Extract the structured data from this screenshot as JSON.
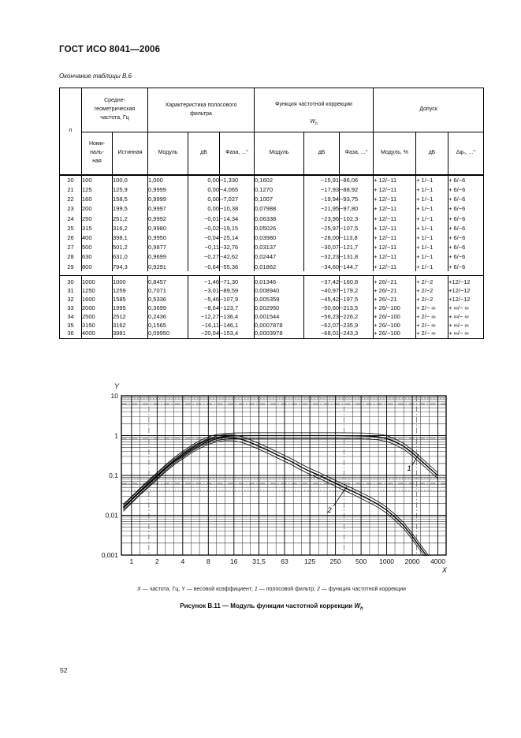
{
  "page": {
    "header_title": "ГОСТ ИСО 8041—2006",
    "continuation_label": "Окончание таблицы В.6",
    "page_number": "52"
  },
  "table": {
    "group_headers": {
      "n": "n",
      "freq": "Средне-\nгеометрическая\nчастота, Гц",
      "filter": "Характеристика полосового\nфильтра",
      "weighting_prefix": "Функция частотной коррекции",
      "weighting_symbol": "W",
      "weighting_sub": "h",
      "tolerance": "Допуск"
    },
    "sub_headers": [
      "Номи-\nналь-\nная",
      "Истинная",
      "Модуль",
      "дБ",
      "Фаза, ...°",
      "Модуль",
      "дБ",
      "Фаза, ...°",
      "Модуль, %",
      "дБ",
      "Δφ₀, ...°"
    ],
    "rows_group1": [
      [
        "20",
        "100",
        "100,0",
        "1,000",
        "0,00",
        "−1,330",
        "0,1602",
        "−15,91",
        "−86,06",
        "+ 12/−11",
        "+ 1/−1",
        "+ 6/−6"
      ],
      [
        "21",
        "125",
        "125,9",
        "0,9999",
        "0,00",
        "−4,065",
        "0,1270",
        "−17,93",
        "−88,92",
        "+ 12/−11",
        "+ 1/−1",
        "+ 6/−6"
      ],
      [
        "22",
        "160",
        "158,5",
        "0,9999",
        "0,00",
        "−7,027",
        "0,1007",
        "−19,94",
        "−93,75",
        "+ 12/−11",
        "+ 1/−1",
        "+ 6/−6"
      ],
      [
        "23",
        "200",
        "199,5",
        "0,9997",
        "0,00",
        "−10,38",
        "0,07988",
        "−21,95",
        "−97,80",
        "+ 12/−11",
        "+ 1/−1",
        "+ 6/−6"
      ],
      [
        "24",
        "250",
        "251,2",
        "0,9992",
        "−0,01",
        "−14,34",
        "0,06338",
        "−23,96",
        "−102,3",
        "+ 12/−11",
        "+ 1/−1",
        "+ 6/−6"
      ],
      [
        "25",
        "315",
        "316,2",
        "0,9980",
        "−0,02",
        "−19,15",
        "0,05026",
        "−25,97",
        "−107,5",
        "+ 12/−11",
        "+ 1/−1",
        "+ 6/−6"
      ],
      [
        "26",
        "400",
        "398,1",
        "0,9950",
        "−0,04",
        "−25,14",
        "0,03980",
        "−28,00",
        "−113,8",
        "+ 12/−11",
        "+ 1/−1",
        "+ 6/−6"
      ],
      [
        "27",
        "500",
        "501,2",
        "0,9877",
        "−0,11",
        "−32,76",
        "0,03137",
        "−30,07",
        "−121,7",
        "+ 12/−11",
        "+ 1/−1",
        "+ 6/−6"
      ],
      [
        "28",
        "630",
        "631,0",
        "0,9699",
        "−0,27",
        "−42,62",
        "0,02447",
        "−32,23",
        "−131,8",
        "+ 12/−11",
        "+ 1/−1",
        "+ 6/−6"
      ],
      [
        "29",
        "800",
        "794,3",
        "0,9291",
        "−0,64",
        "−55,36",
        "0,01862",
        "−34,60",
        "−144,7",
        "+ 12/−11",
        "+ 1/−1",
        "+ 6/−6"
      ]
    ],
    "rows_group2": [
      [
        "30",
        "1000",
        "1000",
        "0,8457",
        "−1,46",
        "−71,30",
        "0,01346",
        "−37,42",
        "−160,8",
        "+ 26/−21",
        "+ 2/−2",
        "+12/−12"
      ],
      [
        "31",
        "1250",
        "1259",
        "0,7071",
        "−3,01",
        "−89,59",
        "0,008940",
        "−40,97",
        "−179,2",
        "+ 26/−21",
        "+ 2/−2",
        "+12/−12"
      ],
      [
        "32",
        "1600",
        "1585",
        "0,5336",
        "−5,46",
        "−107,9",
        "0,005359",
        "−45,42",
        "−197,5",
        "+ 26/−21",
        "+ 2/−2",
        "+12/−12"
      ],
      [
        "33",
        "2000",
        "1995",
        "0,3699",
        "−8,64",
        "−123,7",
        "0,002950",
        "−50,60",
        "−213,5",
        "+ 26/−100",
        "+ 2/− ∞",
        "+ ∞/− ∞"
      ],
      [
        "34",
        "2500",
        "2512",
        "0,2436",
        "−12,27",
        "−136,4",
        "0,001544",
        "−56,23",
        "−226,2",
        "+ 26/−100",
        "+ 2/− ∞",
        "+ ∞/− ∞"
      ],
      [
        "35",
        "3150",
        "3162",
        "0,1565",
        "−16,11",
        "−146,1",
        "0,0007878",
        "−62,07",
        "−235,9",
        "+ 26/−100",
        "+ 2/− ∞",
        "+ ∞/− ∞"
      ],
      [
        "36",
        "4000",
        "3981",
        "0,09950",
        "−20,04",
        "−153,4",
        "0,0003978",
        "−68,01",
        "−243,3",
        "+ 26/−100",
        "+ 2/− ∞",
        "+ ∞/− ∞"
      ]
    ]
  },
  "chart_data": {
    "type": "line",
    "xlabel": "X",
    "ylabel": "Y",
    "x_axis_meaning": "частота, Гц",
    "y_axis_meaning": "весовой коэффициент",
    "x_scale": "log",
    "y_scale": "log",
    "xlim": [
      0.76,
      5000
    ],
    "ylim": [
      0.001,
      10
    ],
    "grid": "on",
    "x_tick_values": [
      1,
      2,
      4,
      8,
      16,
      31.5,
      63,
      125,
      250,
      500,
      1000,
      2000,
      4000
    ],
    "x_tick_labels": [
      "1",
      "2",
      "4",
      "8",
      "16",
      "31,5",
      "63",
      "125",
      "250",
      "500",
      "1000",
      "2000",
      "4000"
    ],
    "y_tick_values": [
      10,
      1,
      0.1,
      0.01,
      0.001
    ],
    "y_tick_labels": [
      "10",
      "1",
      "0,1",
      "0,01",
      "0,001"
    ],
    "x_minor": [
      1.25,
      2.5,
      3.15,
      5,
      6.3,
      10,
      12.5,
      20,
      25,
      40,
      50,
      80,
      100,
      160,
      200,
      400,
      630,
      800,
      1250,
      1600,
      2500,
      3150
    ],
    "dashdot_x": [
      1.6,
      315,
      2240
    ],
    "dashdot_y": [
      6.3,
      0.85,
      0.063
    ],
    "dotted_y": [
      8.5,
      0.085,
      0.042
    ],
    "series": [
      {
        "name": "полосовой фильтр",
        "label": "1",
        "points": [
          [
            0.8,
            0.016
          ],
          [
            1,
            0.025
          ],
          [
            1.25,
            0.04
          ],
          [
            1.6,
            0.065
          ],
          [
            2,
            0.1
          ],
          [
            2.5,
            0.155
          ],
          [
            3.15,
            0.235
          ],
          [
            4,
            0.34
          ],
          [
            5,
            0.47
          ],
          [
            6.3,
            0.63
          ],
          [
            8,
            0.79
          ],
          [
            10,
            0.9
          ],
          [
            12.5,
            0.96
          ],
          [
            16,
            0.985
          ],
          [
            20,
            0.995
          ],
          [
            25,
            0.998
          ],
          [
            31.5,
            0.999
          ],
          [
            63,
            1.0
          ],
          [
            125,
            0.9999
          ],
          [
            250,
            0.9992
          ],
          [
            500,
            0.9877
          ],
          [
            630,
            0.9699
          ],
          [
            800,
            0.9291
          ],
          [
            1000,
            0.8457
          ],
          [
            1250,
            0.7071
          ],
          [
            1600,
            0.5336
          ],
          [
            2000,
            0.3699
          ],
          [
            2500,
            0.2436
          ],
          [
            3150,
            0.1565
          ],
          [
            4000,
            0.0995
          ]
        ]
      },
      {
        "name": "функция частотной коррекции",
        "label": "2",
        "points": [
          [
            0.8,
            0.015
          ],
          [
            1,
            0.024
          ],
          [
            1.25,
            0.038
          ],
          [
            1.6,
            0.061
          ],
          [
            2,
            0.094
          ],
          [
            2.5,
            0.145
          ],
          [
            3.15,
            0.218
          ],
          [
            4,
            0.31
          ],
          [
            5,
            0.43
          ],
          [
            6.3,
            0.57
          ],
          [
            8,
            0.72
          ],
          [
            10,
            0.83
          ],
          [
            12.5,
            0.89
          ],
          [
            16,
            0.88
          ],
          [
            20,
            0.8
          ],
          [
            25,
            0.67
          ],
          [
            31.5,
            0.54
          ],
          [
            40,
            0.43
          ],
          [
            50,
            0.34
          ],
          [
            63,
            0.27
          ],
          [
            80,
            0.21
          ],
          [
            100,
            0.1602
          ],
          [
            125,
            0.127
          ],
          [
            160,
            0.1007
          ],
          [
            200,
            0.0799
          ],
          [
            250,
            0.0634
          ],
          [
            315,
            0.0503
          ],
          [
            400,
            0.0398
          ],
          [
            500,
            0.0314
          ],
          [
            630,
            0.0245
          ],
          [
            800,
            0.0186
          ],
          [
            1000,
            0.01346
          ],
          [
            1250,
            0.00894
          ],
          [
            1600,
            0.00536
          ],
          [
            2000,
            0.00295
          ],
          [
            2500,
            0.00154
          ],
          [
            3150,
            0.00079
          ],
          [
            4000,
            0.0004
          ]
        ]
      }
    ],
    "tolerance_band": {
      "upper_factor": 1.18,
      "lower_factor": 0.84
    }
  },
  "captions": {
    "legend": [
      {
        "t": "X",
        "i": true
      },
      {
        "t": " — частота, Гц, ",
        "i": false
      },
      {
        "t": "Y",
        "i": true
      },
      {
        "t": " — весовой коэффициент; ",
        "i": false
      },
      {
        "t": "1",
        "i": true
      },
      {
        "t": " — полосовой фильтр; ",
        "i": false
      },
      {
        "t": "2",
        "i": true
      },
      {
        "t": " — функция частотной коррекции",
        "i": false
      }
    ],
    "figure": {
      "prefix": "Рисунок В.11 — Модуль функции частотной коррекции ",
      "symbol": "W",
      "sub": "h"
    }
  }
}
